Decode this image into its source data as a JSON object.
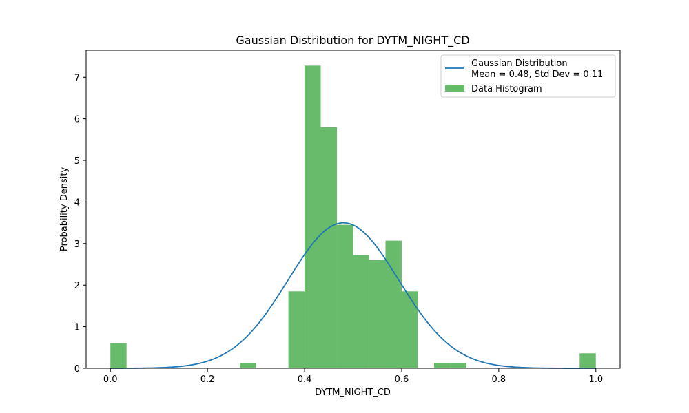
{
  "chart_data": {
    "type": "bar",
    "title": "Gaussian Distribution for DYTM_NIGHT_CD",
    "xlabel": "DYTM_NIGHT_CD",
    "ylabel": "Probability Density",
    "xlim": [
      -0.05,
      1.05
    ],
    "ylim": [
      0,
      7.65
    ],
    "xticks": [
      "0.0",
      "0.2",
      "0.4",
      "0.6",
      "0.8",
      "1.0"
    ],
    "yticks": [
      "0",
      "1",
      "2",
      "3",
      "4",
      "5",
      "6",
      "7"
    ],
    "grid": false,
    "legend_position": "top-right",
    "histogram": {
      "name": "Data Histogram",
      "color": "#4caf50",
      "bin_width": 0.0333,
      "bins": [
        {
          "x0": 0.0,
          "x1": 0.0333,
          "density": 0.6
        },
        {
          "x0": 0.2667,
          "x1": 0.3,
          "density": 0.12
        },
        {
          "x0": 0.3667,
          "x1": 0.4,
          "density": 1.85
        },
        {
          "x0": 0.4,
          "x1": 0.4333,
          "density": 7.28
        },
        {
          "x0": 0.4333,
          "x1": 0.4667,
          "density": 5.8
        },
        {
          "x0": 0.4667,
          "x1": 0.5,
          "density": 3.45
        },
        {
          "x0": 0.5,
          "x1": 0.5333,
          "density": 2.72
        },
        {
          "x0": 0.5333,
          "x1": 0.5667,
          "density": 2.6
        },
        {
          "x0": 0.5667,
          "x1": 0.6,
          "density": 3.07
        },
        {
          "x0": 0.6,
          "x1": 0.6333,
          "density": 1.85
        },
        {
          "x0": 0.6667,
          "x1": 0.7,
          "density": 0.12
        },
        {
          "x0": 0.7,
          "x1": 0.7333,
          "density": 0.12
        },
        {
          "x0": 0.9667,
          "x1": 1.0,
          "density": 0.36
        }
      ]
    },
    "gaussian": {
      "name": "Gaussian Distribution\nMean = 0.48, Std Dev = 0.11",
      "legend_line1": "Gaussian Distribution",
      "legend_line2": "Mean = 0.48, Std Dev = 0.11",
      "mean": 0.48,
      "std": 0.114,
      "x_range": [
        0.0,
        1.0
      ],
      "color": "#1f77b4"
    }
  }
}
